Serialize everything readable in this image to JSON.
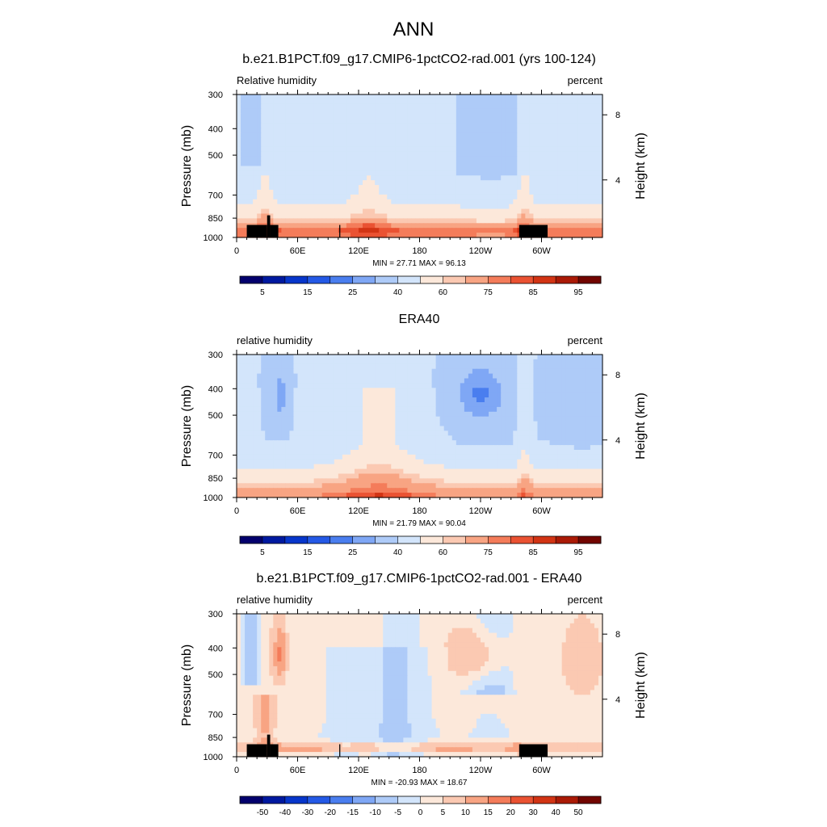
{
  "figure_title": "ANN",
  "chart_data": [
    {
      "type": "heatmap",
      "title": "b.e21.B1PCT.f09_g17.CMIP6-1pctCO2-rad.001 (yrs 100-124)",
      "left_label": "Relative humidity",
      "right_label": "percent",
      "ylabel": "Pressure (mb)",
      "ylabel_right": "Height (km)",
      "x_ticks": [
        "0",
        "60E",
        "120E",
        "180",
        "120W",
        "60W"
      ],
      "y_ticks": [
        "300",
        "400",
        "500",
        "700",
        "850",
        "1000"
      ],
      "y2_ticks": [
        "8",
        "4"
      ],
      "stats": "MIN = 27.71  MAX = 96.13",
      "min": 27.71,
      "max": 96.13,
      "colorbar_labels": [
        "5",
        "15",
        "25",
        "40",
        "60",
        "75",
        "85",
        "95"
      ],
      "colorbar_colors": [
        "#03006d",
        "#0019a0",
        "#0736cb",
        "#2459e6",
        "#4a7eef",
        "#7fa7f5",
        "#aecbf8",
        "#d3e5fb",
        "#fce8da",
        "#fbc9b2",
        "#f8a483",
        "#f47c5a",
        "#ea5232",
        "#d23414",
        "#aa1a06",
        "#720500"
      ],
      "y_range_mb": [
        1000,
        300
      ]
    },
    {
      "type": "heatmap",
      "title": "ERA40",
      "left_label": "relative humidity",
      "right_label": "percent",
      "ylabel": "Pressure (mb)",
      "ylabel_right": "Height (km)",
      "x_ticks": [
        "0",
        "60E",
        "120E",
        "180",
        "120W",
        "60W"
      ],
      "y_ticks": [
        "300",
        "400",
        "500",
        "700",
        "850",
        "1000"
      ],
      "y2_ticks": [
        "8",
        "4"
      ],
      "stats": "MIN = 21.79  MAX = 90.04",
      "min": 21.79,
      "max": 90.04,
      "colorbar_labels": [
        "5",
        "15",
        "25",
        "40",
        "60",
        "75",
        "85",
        "95"
      ],
      "colorbar_colors": [
        "#03006d",
        "#0019a0",
        "#0736cb",
        "#2459e6",
        "#4a7eef",
        "#7fa7f5",
        "#aecbf8",
        "#d3e5fb",
        "#fce8da",
        "#fbc9b2",
        "#f8a483",
        "#f47c5a",
        "#ea5232",
        "#d23414",
        "#aa1a06",
        "#720500"
      ],
      "y_range_mb": [
        1000,
        300
      ]
    },
    {
      "type": "heatmap",
      "title": "b.e21.B1PCT.f09_g17.CMIP6-1pctCO2-rad.001 - ERA40",
      "left_label": "relative humidity",
      "right_label": "percent",
      "ylabel": "Pressure (mb)",
      "ylabel_right": "Height (km)",
      "x_ticks": [
        "0",
        "60E",
        "120E",
        "180",
        "120W",
        "60W"
      ],
      "y_ticks": [
        "300",
        "400",
        "500",
        "700",
        "850",
        "1000"
      ],
      "y2_ticks": [
        "8",
        "4"
      ],
      "stats": "MIN = -20.93  MAX = 18.67",
      "min": -20.93,
      "max": 18.67,
      "colorbar_labels": [
        "-50",
        "-40",
        "-30",
        "-20",
        "-15",
        "-10",
        "-5",
        "0",
        "5",
        "10",
        "15",
        "20",
        "30",
        "40",
        "50"
      ],
      "colorbar_colors": [
        "#03006d",
        "#0019a0",
        "#0736cb",
        "#2459e6",
        "#4a7eef",
        "#7fa7f5",
        "#aecbf8",
        "#d3e5fb",
        "#fce8da",
        "#fbc9b2",
        "#f8a483",
        "#f47c5a",
        "#ea5232",
        "#d23414",
        "#aa1a06",
        "#720500"
      ],
      "y_range_mb": [
        1000,
        300
      ]
    }
  ]
}
